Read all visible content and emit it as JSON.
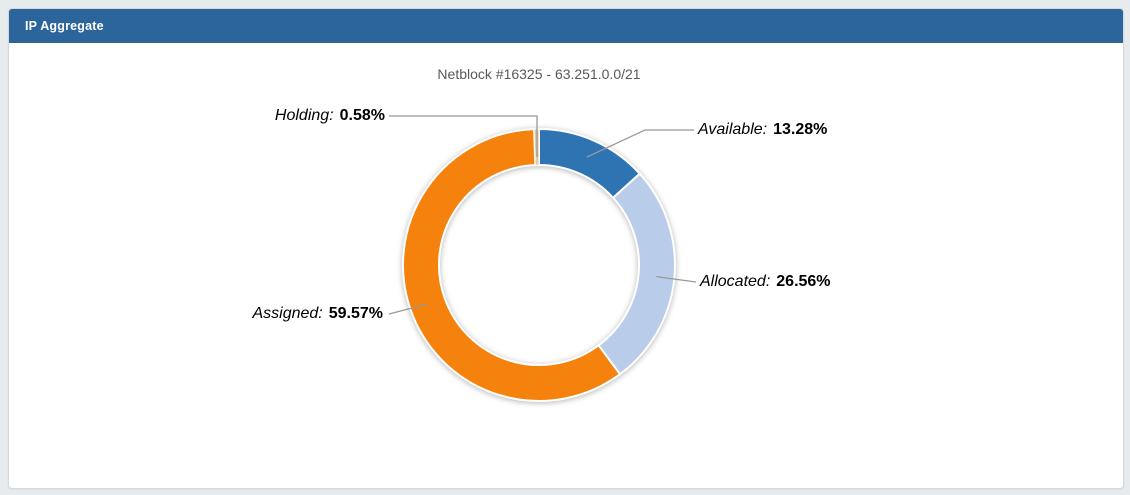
{
  "panel": {
    "title": "IP Aggregate"
  },
  "colors": {
    "header_bg": "#2b659b",
    "page_bg": "#e8ebee",
    "leader_line": "#999999",
    "title_text": "#58595b"
  },
  "chart_data": {
    "type": "pie",
    "subtype": "donut",
    "title": "Netblock #16325 - 63.251.0.0/21",
    "start_angle": "top",
    "direction": "clockwise",
    "legend_position": "callout-labels",
    "slices": [
      {
        "name": "Available",
        "percent": 13.28,
        "label": "Available:",
        "value_text": "13.28%",
        "color": "#2e73b2"
      },
      {
        "name": "Allocated",
        "percent": 26.56,
        "label": "Allocated:",
        "value_text": "26.56%",
        "color": "#b9cce9"
      },
      {
        "name": "Assigned",
        "percent": 59.57,
        "label": "Assigned:",
        "value_text": "59.57%",
        "color": "#f5820d"
      },
      {
        "name": "Holding",
        "percent": 0.58,
        "label": "Holding:",
        "value_text": "0.58%",
        "color": "#e4c9a0"
      }
    ]
  }
}
